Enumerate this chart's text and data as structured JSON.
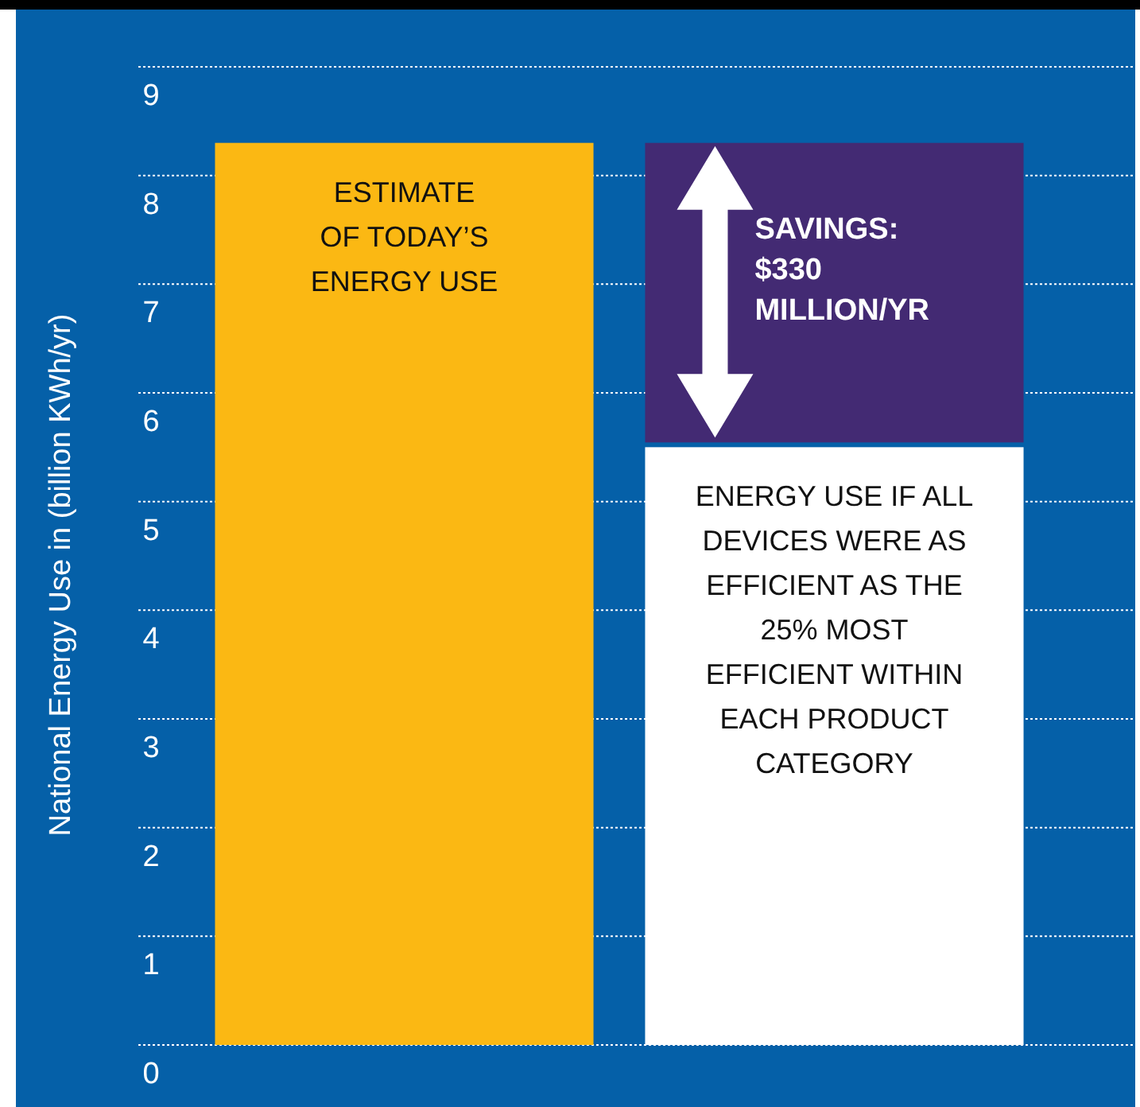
{
  "chart_data": {
    "type": "bar",
    "ylabel": "National Energy Use in (billion KWh/yr)",
    "categories": [
      null,
      null
    ],
    "stacked": true,
    "series": [
      {
        "colors": [
          "#fbb813",
          "#ffffff"
        ],
        "values": [
          8.3,
          5.5
        ]
      },
      {
        "color": "#432a73",
        "values": [
          null,
          2.8
        ]
      }
    ],
    "ylim": [
      0,
      9
    ],
    "yticks": [
      0,
      1,
      2,
      3,
      4,
      5,
      6,
      7,
      8,
      9
    ],
    "grid": "y",
    "tick_labels": "y",
    "annotations": [
      "ESTIMATE\nOF TODAY’S\nENERGY USE",
      "SAVINGS:\n$330\nMILLION/YR",
      "ENERGY USE IF ALL\nDEVICES WERE AS\nEFFICIENT AS THE\n25% MOST\nEFFICIENT WITHIN\nEACH PRODUCT\nCATEGORY"
    ]
  }
}
